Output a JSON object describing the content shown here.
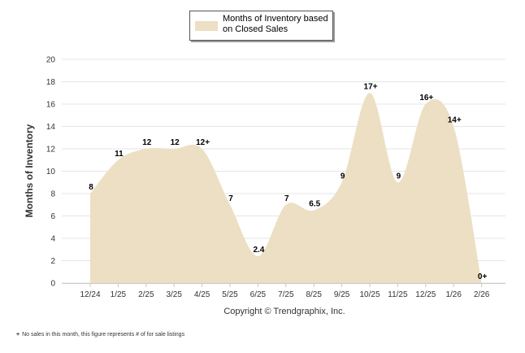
{
  "legend": {
    "label": "Months of Inventory based on Closed Sales",
    "color": "#ecdfc3"
  },
  "copyright": "Copyright © Trendgraphix, Inc.",
  "footnote": {
    "marker": "+",
    "text": "No sales in this month, this figure represents # of for sale listings"
  },
  "chart_data": {
    "type": "area",
    "title": "",
    "xlabel": "",
    "ylabel": "Months of Inventory",
    "ylim": [
      0,
      20
    ],
    "yticks": [
      0,
      2,
      4,
      6,
      8,
      10,
      12,
      14,
      16,
      18,
      20
    ],
    "grid": true,
    "legend_position": "top-center",
    "fill_color": "#ecdfc3",
    "categories": [
      "12/24",
      "1/25",
      "2/25",
      "3/25",
      "4/25",
      "5/25",
      "6/25",
      "7/25",
      "8/25",
      "9/25",
      "10/25",
      "11/25",
      "12/25",
      "1/26",
      "2/26"
    ],
    "series": [
      {
        "name": "Months of Inventory based on Closed Sales",
        "values": [
          8,
          11,
          12,
          12,
          12,
          7,
          2.4,
          7,
          6.5,
          9,
          17,
          9,
          16,
          14,
          0
        ],
        "labels": [
          "8",
          "11",
          "12",
          "12",
          "12+",
          "7",
          "2.4",
          "7",
          "6.5",
          "9",
          "17+",
          "9",
          "16+",
          "14+",
          "0+"
        ]
      }
    ]
  }
}
